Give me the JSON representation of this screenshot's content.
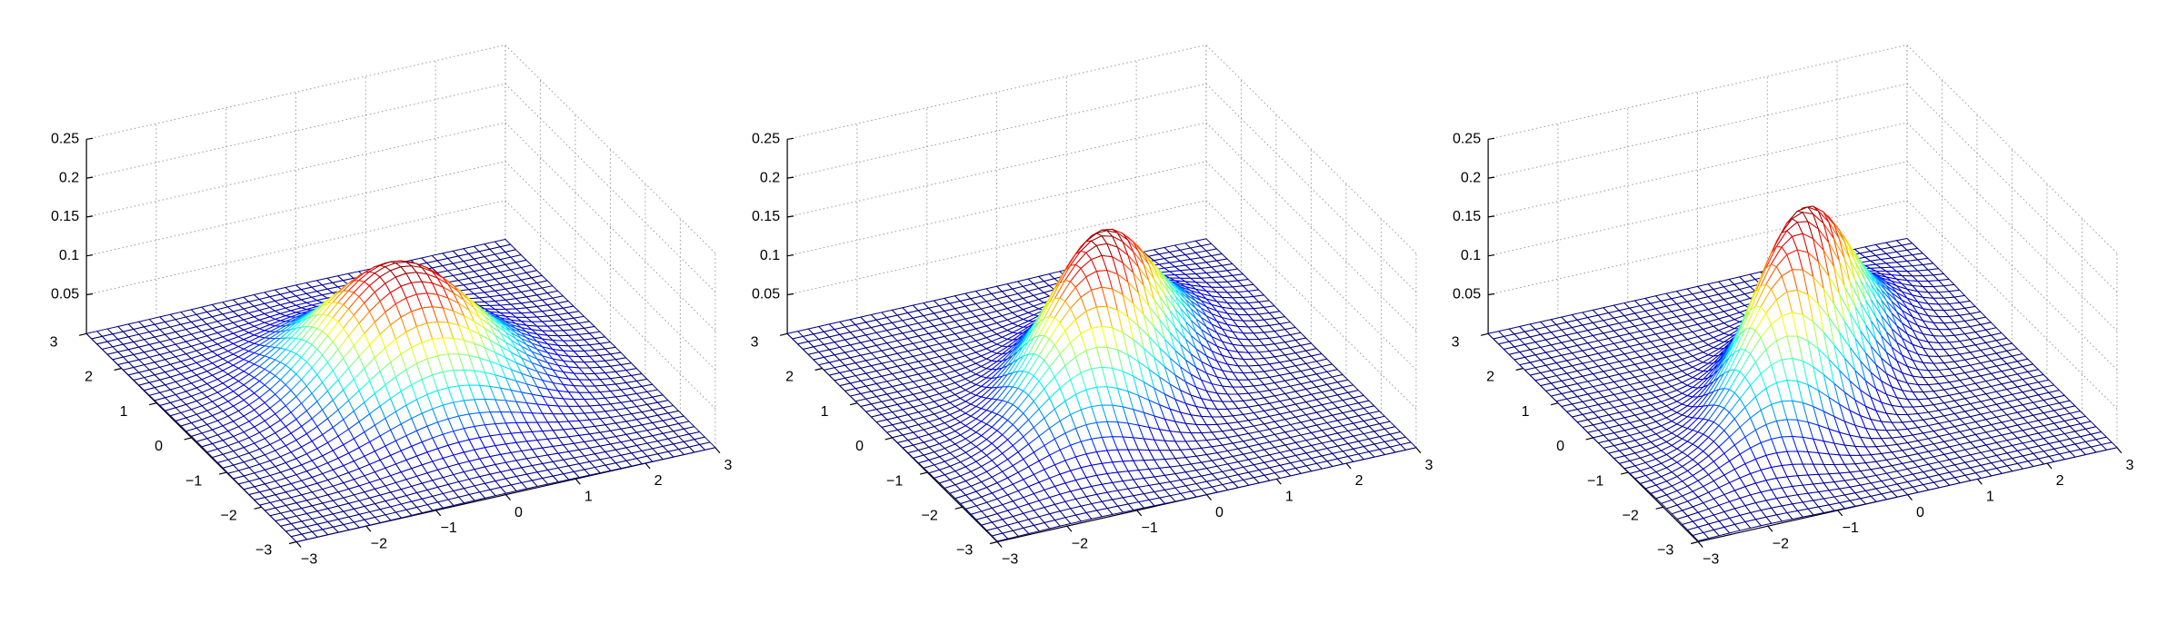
{
  "chart_data": [
    {
      "type": "mesh",
      "mean": [
        0,
        0
      ],
      "cov": [
        [
          1,
          0
        ],
        [
          0,
          1
        ]
      ],
      "colormap": "jet",
      "grid": true,
      "xlim": [
        -3,
        3
      ],
      "ylim": [
        -3,
        3
      ],
      "zlim": [
        0,
        0.25
      ],
      "xticks": [
        {
          "value": -3,
          "label": "−3"
        },
        {
          "value": -2,
          "label": "−2"
        },
        {
          "value": -1,
          "label": "−1"
        },
        0,
        1,
        2,
        3
      ],
      "yticks": [
        {
          "value": -3,
          "label": "−3"
        },
        {
          "value": -2,
          "label": "−2"
        },
        {
          "value": -1,
          "label": "−1"
        },
        0,
        1,
        2,
        3
      ],
      "zticks": [
        0.05,
        0.1,
        0.15,
        0.2,
        0.25
      ]
    },
    {
      "type": "mesh",
      "mean": [
        0,
        0
      ],
      "cov": [
        [
          1,
          0.6
        ],
        [
          0.6,
          1
        ]
      ],
      "colormap": "jet",
      "grid": true,
      "xlim": [
        -3,
        3
      ],
      "ylim": [
        -3,
        3
      ],
      "zlim": [
        0,
        0.25
      ],
      "xticks": [
        {
          "value": -3,
          "label": "−3"
        },
        {
          "value": -2,
          "label": "−2"
        },
        {
          "value": -1,
          "label": "−1"
        },
        0,
        1,
        2,
        3
      ],
      "yticks": [
        {
          "value": -3,
          "label": "−3"
        },
        {
          "value": -2,
          "label": "−2"
        },
        {
          "value": -1,
          "label": "−1"
        },
        0,
        1,
        2,
        3
      ],
      "zticks": [
        0.05,
        0.1,
        0.15,
        0.2,
        0.25
      ]
    },
    {
      "type": "mesh",
      "mean": [
        0,
        0
      ],
      "cov": [
        [
          1,
          0.72
        ],
        [
          0.72,
          1
        ]
      ],
      "colormap": "jet",
      "grid": true,
      "xlim": [
        -3,
        3
      ],
      "ylim": [
        -3,
        3
      ],
      "zlim": [
        0,
        0.25
      ],
      "xticks": [
        {
          "value": -3,
          "label": "−3"
        },
        {
          "value": -2,
          "label": "−2"
        },
        {
          "value": -1,
          "label": "−1"
        },
        0,
        1,
        2,
        3
      ],
      "yticks": [
        {
          "value": -3,
          "label": "−3"
        },
        {
          "value": -2,
          "label": "−2"
        },
        {
          "value": -1,
          "label": "−1"
        },
        0,
        1,
        2,
        3
      ],
      "zticks": [
        0.05,
        0.1,
        0.15,
        0.2,
        0.25
      ]
    }
  ]
}
